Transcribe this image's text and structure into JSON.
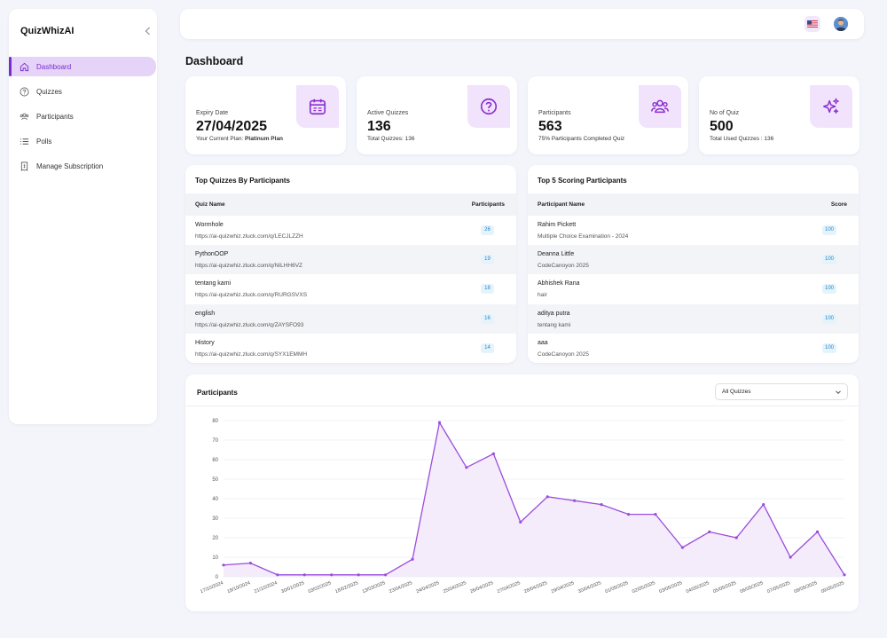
{
  "app": {
    "name": "QuizWhizAI"
  },
  "sidebar": {
    "items": [
      {
        "label": "Dashboard",
        "icon": "home-icon",
        "active": true
      },
      {
        "label": "Quizzes",
        "icon": "question-circle-icon",
        "active": false
      },
      {
        "label": "Participants",
        "icon": "users-icon",
        "active": false
      },
      {
        "label": "Polls",
        "icon": "list-icon",
        "active": false
      },
      {
        "label": "Manage Subscription",
        "icon": "receipt-icon",
        "active": false
      }
    ]
  },
  "header": {
    "flag_icon": "us-flag-icon",
    "avatar_icon": "user-avatar-icon"
  },
  "page": {
    "title": "Dashboard"
  },
  "stats": [
    {
      "label": "Expiry Date",
      "value": "27/04/2025",
      "sub_prefix": "Your Current Plan: ",
      "sub_bold": "Platinum Plan",
      "icon": "calendar-icon"
    },
    {
      "label": "Active Quizzes",
      "value": "136",
      "sub_prefix": "Total Quizzes: 136",
      "sub_bold": "",
      "icon": "question-circle-icon"
    },
    {
      "label": "Participants",
      "value": "563",
      "sub_prefix": "75% Participants Completed Quiz",
      "sub_bold": "",
      "icon": "users-icon"
    },
    {
      "label": "No of Quiz",
      "value": "500",
      "sub_prefix": "Total Used Quizzes : 136",
      "sub_bold": "",
      "icon": "sparkles-icon"
    }
  ],
  "top_quizzes": {
    "title": "Top Quizzes By Participants",
    "columns": [
      "Quiz Name",
      "Participants"
    ],
    "rows": [
      {
        "name": "Wormhole",
        "url": "https://ai-quizwhiz.zluck.com/q/LECJLZZH",
        "count": "26"
      },
      {
        "name": "PythonOOP",
        "url": "https://ai-quizwhiz.zluck.com/q/NILHH6VZ",
        "count": "19"
      },
      {
        "name": "tentang kami",
        "url": "https://ai-quizwhiz.zluck.com/q/RURGSVXS",
        "count": "18"
      },
      {
        "name": "english",
        "url": "https://ai-quizwhiz.zluck.com/q/ZAYSFO93",
        "count": "16"
      },
      {
        "name": "History",
        "url": "https://ai-quizwhiz.zluck.com/q/SYX1EMMH",
        "count": "14"
      }
    ]
  },
  "top_participants": {
    "title": "Top 5 Scoring Participants",
    "columns": [
      "Participant Name",
      "Score"
    ],
    "rows": [
      {
        "name": "Rahim Pickett",
        "quiz": "Multiple Choice Examination - 2024",
        "score": "100"
      },
      {
        "name": "Deanna Little",
        "quiz": "CodeCanoyon 2025",
        "score": "100"
      },
      {
        "name": "Abhishek Rana",
        "quiz": "hair",
        "score": "100"
      },
      {
        "name": "aditya putra",
        "quiz": "tentang kami",
        "score": "100"
      },
      {
        "name": "aaa",
        "quiz": "CodeCanoyon 2025",
        "score": "100"
      }
    ]
  },
  "participants_chart": {
    "title": "Participants",
    "filter": {
      "selected": "All Quizzes"
    }
  },
  "chart_data": {
    "type": "area",
    "title": "Participants",
    "x": [
      "17/10/2024",
      "18/10/2024",
      "21/10/2024",
      "30/01/2025",
      "03/02/2025",
      "18/02/2025",
      "13/03/2025",
      "23/04/2025",
      "24/04/2025",
      "25/04/2025",
      "26/04/2025",
      "27/04/2025",
      "28/04/2025",
      "29/04/2025",
      "30/04/2025",
      "01/05/2025",
      "02/05/2025",
      "03/05/2025",
      "04/05/2025",
      "05/05/2025",
      "06/05/2025",
      "07/05/2025",
      "08/05/2025",
      "09/05/2025"
    ],
    "series": [
      {
        "values": [
          6,
          7,
          1,
          1,
          1,
          1,
          1,
          9,
          79,
          56,
          63,
          28,
          41,
          39,
          37,
          32,
          32,
          15,
          23,
          20,
          37,
          10,
          23,
          1
        ]
      }
    ],
    "ylim": [
      0,
      80
    ],
    "yticks": [
      0,
      10,
      20,
      30,
      40,
      50,
      60,
      70,
      80
    ],
    "grid": true,
    "color": "#9b4ddb",
    "fill": "#f4ebfb"
  }
}
